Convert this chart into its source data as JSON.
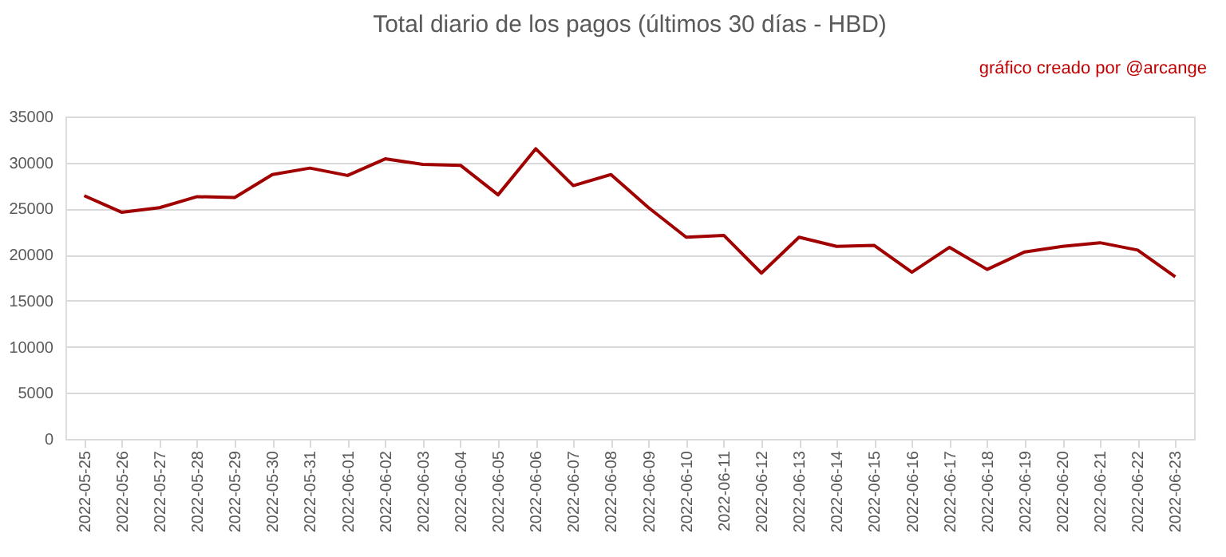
{
  "chart_data": {
    "type": "line",
    "title": "Total diario de los pagos (últimos 30 días - HBD)",
    "annotations": [
      "gráfico creado por @arcange"
    ],
    "categories": [
      "2022-05-25",
      "2022-05-26",
      "2022-05-27",
      "2022-05-28",
      "2022-05-29",
      "2022-05-30",
      "2022-05-31",
      "2022-06-01",
      "2022-06-02",
      "2022-06-03",
      "2022-06-04",
      "2022-06-05",
      "2022-06-06",
      "2022-06-07",
      "2022-06-08",
      "2022-06-09",
      "2022-06-10",
      "2022-06-11",
      "2022-06-12",
      "2022-06-13",
      "2022-06-14",
      "2022-06-15",
      "2022-06-16",
      "2022-06-17",
      "2022-06-18",
      "2022-06-19",
      "2022-06-20",
      "2022-06-21",
      "2022-06-22",
      "2022-06-23"
    ],
    "series": [
      {
        "color": "#a00000",
        "values": [
          26400,
          24600,
          25100,
          26300,
          26200,
          28700,
          29400,
          28600,
          30400,
          29800,
          29700,
          26500,
          31500,
          27500,
          28700,
          25100,
          21900,
          22100,
          18000,
          21900,
          20900,
          21000,
          18100,
          20800,
          18400,
          20300,
          20900,
          21300,
          20500,
          17600
        ]
      }
    ],
    "ylim": [
      0,
      35000
    ],
    "yticks": [
      0,
      5000,
      10000,
      15000,
      20000,
      25000,
      30000,
      35000
    ],
    "grid": "y",
    "marker": "none",
    "line_style": "solid",
    "legend": false
  }
}
